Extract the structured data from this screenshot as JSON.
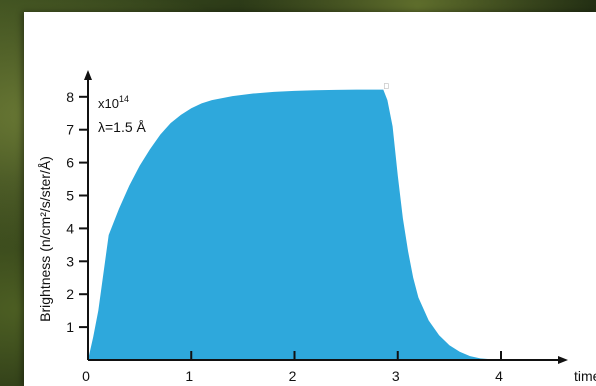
{
  "chart_data": {
    "type": "area",
    "title": "",
    "xlabel": "time (ms)",
    "ylabel": "Brightness (n/cm²/s/ster/Å)",
    "x_ticks": [
      "0",
      "1",
      "2",
      "3",
      "4"
    ],
    "y_ticks": [
      "1",
      "2",
      "3",
      "4",
      "5",
      "6",
      "7",
      "8"
    ],
    "xlim": [
      0,
      4.4
    ],
    "ylim": [
      0,
      8.8
    ],
    "annotations": {
      "scale": "x10",
      "scale_exp": "14",
      "wavelength": "λ=1.5 Å"
    },
    "fill_color": "#2ea8dc",
    "series": [
      {
        "x": [
          0,
          0.05,
          0.1,
          0.2,
          0.3,
          0.4,
          0.5,
          0.6,
          0.7,
          0.8,
          0.9,
          1.0,
          1.1,
          1.2,
          1.4,
          1.6,
          1.8,
          2.0,
          2.2,
          2.4,
          2.6,
          2.75,
          2.86,
          2.9,
          2.95,
          3.0,
          3.05,
          3.1,
          3.15,
          3.2,
          3.3,
          3.4,
          3.5,
          3.6,
          3.7,
          3.8,
          3.9,
          4.0
        ],
        "y": [
          0,
          0.7,
          1.5,
          3.8,
          4.6,
          5.3,
          5.9,
          6.4,
          6.85,
          7.2,
          7.45,
          7.65,
          7.8,
          7.9,
          8.02,
          8.1,
          8.15,
          8.18,
          8.2,
          8.21,
          8.22,
          8.22,
          8.22,
          7.9,
          7.1,
          5.6,
          4.3,
          3.3,
          2.5,
          1.9,
          1.2,
          0.75,
          0.45,
          0.25,
          0.12,
          0.05,
          0.02,
          0
        ]
      }
    ]
  }
}
